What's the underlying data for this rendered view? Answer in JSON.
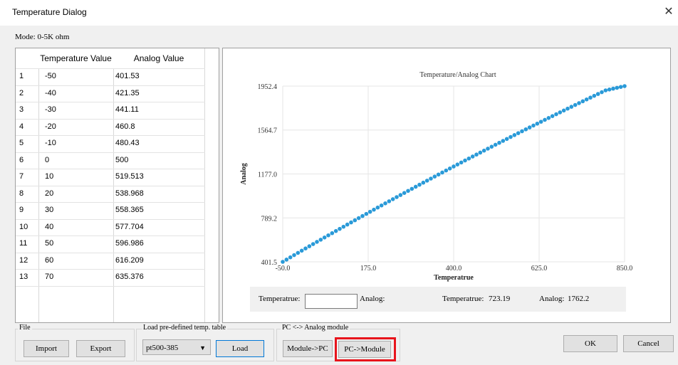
{
  "window": {
    "title": "Temperature Dialog",
    "close_glyph": "✕"
  },
  "mode_label": "Mode:  0-5K ohm",
  "table": {
    "headers": [
      "Temperature Value",
      "Analog Value"
    ],
    "rows": [
      {
        "n": "1",
        "t": "-50",
        "a": "401.53"
      },
      {
        "n": "2",
        "t": "-40",
        "a": "421.35"
      },
      {
        "n": "3",
        "t": "-30",
        "a": "441.11"
      },
      {
        "n": "4",
        "t": "-20",
        "a": "460.8"
      },
      {
        "n": "5",
        "t": "-10",
        "a": "480.43"
      },
      {
        "n": "6",
        "t": "0",
        "a": "500"
      },
      {
        "n": "7",
        "t": "10",
        "a": "519.513"
      },
      {
        "n": "8",
        "t": "20",
        "a": "538.968"
      },
      {
        "n": "9",
        "t": "30",
        "a": "558.365"
      },
      {
        "n": "10",
        "t": "40",
        "a": "577.704"
      },
      {
        "n": "11",
        "t": "50",
        "a": "596.986"
      },
      {
        "n": "12",
        "t": "60",
        "a": "616.209"
      },
      {
        "n": "13",
        "t": "70",
        "a": "635.376"
      }
    ],
    "scroll_position": 0.0
  },
  "chart": {
    "title": "Temperature/Analog Chart",
    "xlabel": "Temperatrue",
    "ylabel": "Analog",
    "xticks": [
      "-50.0",
      "175.0",
      "400.0",
      "625.0",
      "850.0"
    ],
    "yticks": [
      "401.5",
      "789.2",
      "1177.0",
      "1564.7",
      "1952.4"
    ]
  },
  "chart_data": {
    "type": "scatter",
    "title": "Temperature/Analog Chart",
    "xlabel": "Temperatrue",
    "ylabel": "Analog",
    "xlim": [
      -50,
      850
    ],
    "ylim": [
      401.5,
      1952.4
    ],
    "grid": true,
    "series": [
      {
        "color": "#2a9ad8",
        "x_start": -50,
        "x_end": 850,
        "x_step": 10,
        "points": [
          [
            -50,
            401.53
          ],
          [
            -40,
            421.35
          ],
          [
            -30,
            441.11
          ],
          [
            -20,
            460.8
          ],
          [
            -10,
            480.43
          ],
          [
            0,
            500
          ],
          [
            10,
            519.513
          ],
          [
            20,
            538.968
          ],
          [
            30,
            558.365
          ],
          [
            40,
            577.704
          ],
          [
            50,
            596.986
          ],
          [
            60,
            616.209
          ],
          [
            70,
            635.376
          ],
          [
            100,
            692.6
          ],
          [
            150,
            787.2
          ],
          [
            200,
            880.6
          ],
          [
            250,
            972.9
          ],
          [
            300,
            1064.1
          ],
          [
            350,
            1154.2
          ],
          [
            400,
            1243.1
          ],
          [
            450,
            1330.9
          ],
          [
            500,
            1417.6
          ],
          [
            550,
            1503.2
          ],
          [
            600,
            1587.7
          ],
          [
            650,
            1671.1
          ],
          [
            700,
            1753.4
          ],
          [
            750,
            1834.6
          ],
          [
            800,
            1914.7
          ],
          [
            850,
            1952.4
          ]
        ]
      }
    ]
  },
  "info": {
    "temp_label": "Temperatrue:",
    "temp_value": "",
    "analog_label": "Analog:",
    "cursor_temp_label": "Temperatrue:",
    "cursor_temp_value": "723.19",
    "cursor_analog_label": "Analog:",
    "cursor_analog_value": "1762.2"
  },
  "file_group": {
    "label": "File",
    "import": "Import",
    "export": "Export"
  },
  "load_group": {
    "label": "Load pre-defined temp. table",
    "selected": "pt500-385",
    "load": "Load"
  },
  "pc_group": {
    "label": "PC <-> Analog module",
    "module_to_pc": "Module->PC",
    "pc_to_module": "PC->Module"
  },
  "dialog": {
    "ok": "OK",
    "cancel": "Cancel"
  },
  "colors": {
    "highlight": "#e8141c",
    "series": "#2a9ad8",
    "focus_border": "#0078d7"
  }
}
